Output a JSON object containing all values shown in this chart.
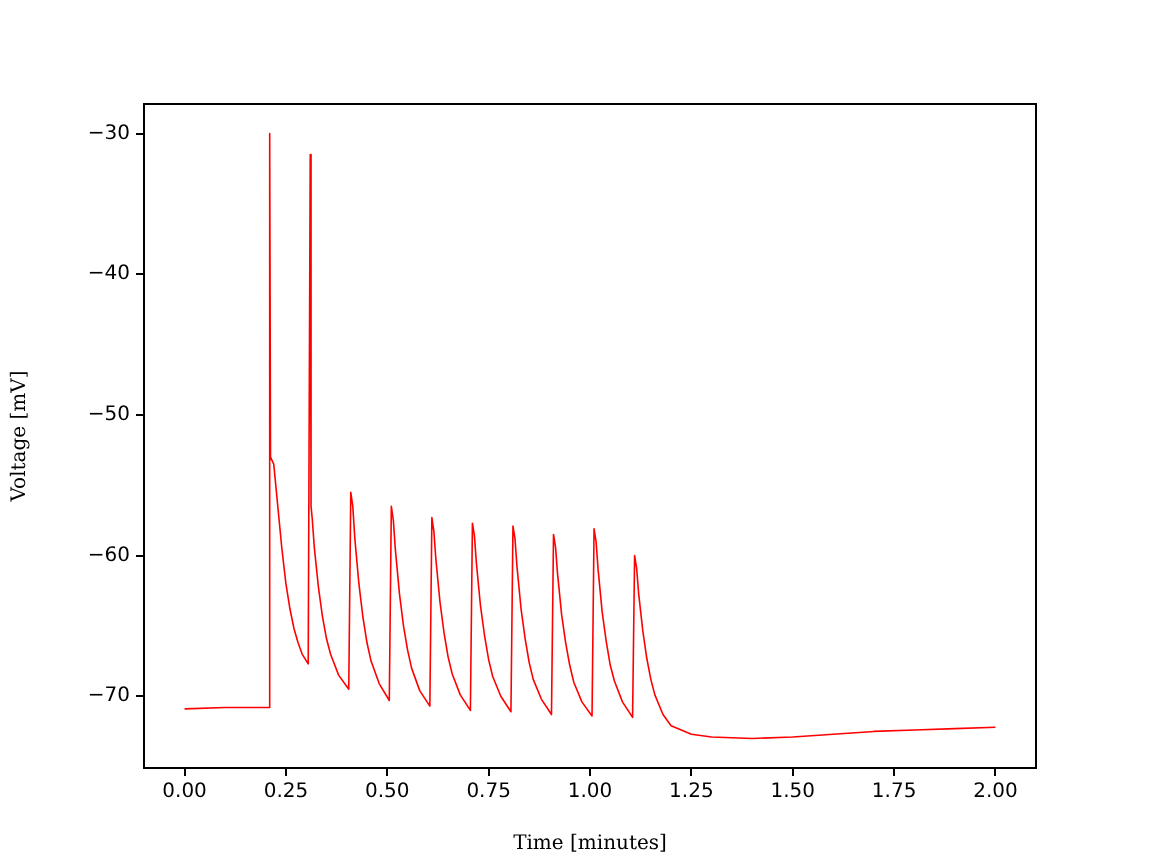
{
  "chart_data": {
    "type": "line",
    "xlabel": "Time [minutes]",
    "ylabel": "Voltage [mV]",
    "marker": "none",
    "line_style": "solid",
    "xlim": [
      -0.1,
      2.1
    ],
    "ylim": [
      -75.1,
      -27.9
    ],
    "xticks": [
      {
        "value": 0,
        "label": "0.00"
      },
      {
        "value": 0.25,
        "label": "0.25"
      },
      {
        "value": 0.5,
        "label": "0.50"
      },
      {
        "value": 0.75,
        "label": "0.75"
      },
      {
        "value": 1,
        "label": "1.00"
      },
      {
        "value": 1.25,
        "label": "1.25"
      },
      {
        "value": 1.5,
        "label": "1.50"
      },
      {
        "value": 1.75,
        "label": "1.75"
      },
      {
        "value": 2,
        "label": "2.00"
      }
    ],
    "yticks": [
      {
        "value": -70,
        "label": "−70"
      },
      {
        "value": -60,
        "label": "−60"
      },
      {
        "value": -50,
        "label": "−50"
      },
      {
        "value": -40,
        "label": "−40"
      },
      {
        "value": -30,
        "label": "−30"
      }
    ],
    "series": [
      {
        "color": "#ff0000",
        "x": [
          0,
          0.1,
          0.2,
          0.209,
          0.21,
          0.212,
          0.22,
          0.23,
          0.24,
          0.25,
          0.26,
          0.27,
          0.28,
          0.29,
          0.305,
          0.31,
          0.312,
          0.315,
          0.32,
          0.33,
          0.34,
          0.35,
          0.36,
          0.38,
          0.405,
          0.41,
          0.415,
          0.42,
          0.43,
          0.44,
          0.45,
          0.46,
          0.48,
          0.505,
          0.51,
          0.515,
          0.52,
          0.53,
          0.54,
          0.55,
          0.56,
          0.58,
          0.605,
          0.61,
          0.615,
          0.62,
          0.63,
          0.64,
          0.65,
          0.66,
          0.68,
          0.705,
          0.71,
          0.715,
          0.72,
          0.73,
          0.74,
          0.75,
          0.76,
          0.78,
          0.805,
          0.81,
          0.815,
          0.82,
          0.83,
          0.84,
          0.85,
          0.86,
          0.88,
          0.905,
          0.91,
          0.915,
          0.92,
          0.93,
          0.94,
          0.95,
          0.96,
          0.98,
          1.005,
          1.01,
          1.015,
          1.02,
          1.03,
          1.04,
          1.05,
          1.06,
          1.08,
          1.105,
          1.11,
          1.115,
          1.12,
          1.13,
          1.14,
          1.15,
          1.16,
          1.18,
          1.2,
          1.25,
          1.3,
          1.4,
          1.5,
          1.6,
          1.7,
          1.8,
          1.9,
          2.0
        ],
        "values": [
          -70.9,
          -70.8,
          -70.8,
          -70.8,
          -30,
          -53,
          -53.5,
          -56.5,
          -59.5,
          -62,
          -63.8,
          -65.2,
          -66.2,
          -67,
          -67.7,
          -31.5,
          -56.5,
          -57.4,
          -59.4,
          -62.2,
          -64.3,
          -65.9,
          -67,
          -68.5,
          -69.5,
          -55.5,
          -56.5,
          -58.8,
          -62,
          -64.4,
          -66.2,
          -67.5,
          -69.1,
          -70.3,
          -56.5,
          -57.5,
          -59.6,
          -62.7,
          -65,
          -66.7,
          -68,
          -69.6,
          -70.7,
          -57.3,
          -58.3,
          -60.3,
          -63.3,
          -65.5,
          -67.2,
          -68.4,
          -69.9,
          -71,
          -57.7,
          -58.6,
          -60.6,
          -63.6,
          -65.7,
          -67.4,
          -68.6,
          -70,
          -71.1,
          -57.9,
          -58.8,
          -60.8,
          -63.8,
          -65.9,
          -67.6,
          -68.8,
          -70.2,
          -71.3,
          -58.5,
          -59.4,
          -61.3,
          -64.2,
          -66.2,
          -67.8,
          -69,
          -70.4,
          -71.4,
          -58.1,
          -59,
          -61,
          -64,
          -66.1,
          -67.8,
          -68.9,
          -70.4,
          -71.5,
          -60,
          -60.9,
          -62.7,
          -65.3,
          -67.3,
          -68.8,
          -69.9,
          -71.3,
          -72.1,
          -72.7,
          -72.9,
          -73,
          -72.9,
          -72.7,
          -72.5,
          -72.4,
          -72.3,
          -72.2
        ]
      }
    ]
  }
}
